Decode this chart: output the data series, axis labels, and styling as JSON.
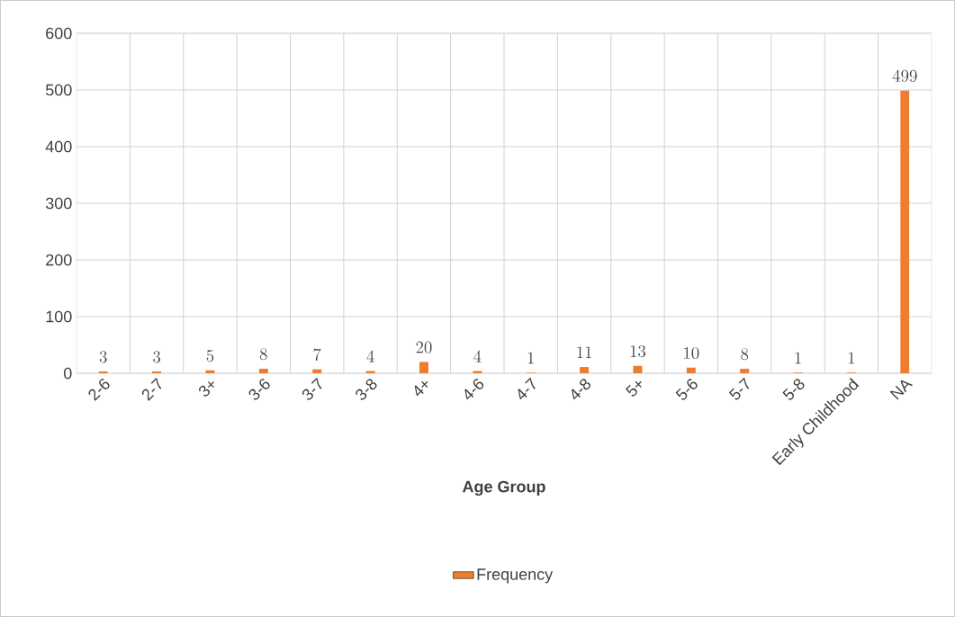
{
  "chart_data": {
    "type": "bar",
    "xlabel": "Age Group",
    "categories": [
      "2-6",
      "2-7",
      "3+",
      "3-6",
      "3-7",
      "3-8",
      "4+",
      "4-6",
      "4-7",
      "4-8",
      "5+",
      "5-6",
      "5-7",
      "5-8",
      "Early Childhood",
      "NA"
    ],
    "series": [
      {
        "name": "Frequency",
        "color": "#ed7d31",
        "values": [
          3,
          3,
          5,
          8,
          7,
          4,
          20,
          4,
          1,
          11,
          13,
          10,
          8,
          1,
          1,
          499
        ]
      }
    ],
    "ylim": [
      0,
      600
    ],
    "yticks": [
      0,
      100,
      200,
      300,
      400,
      500,
      600
    ],
    "grid": true,
    "legend": "bottom",
    "data_labels": true
  }
}
